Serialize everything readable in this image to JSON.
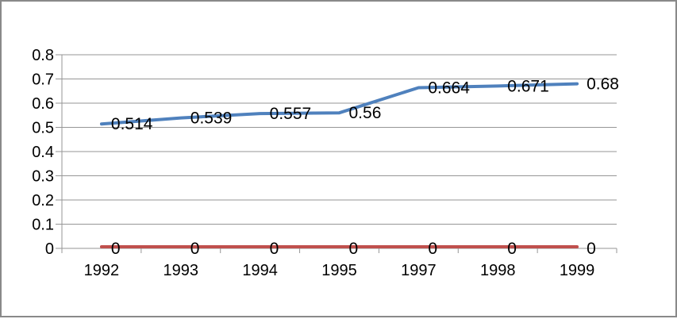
{
  "chart": {
    "background_color": "#ffffff",
    "frame_border_color": "#898989",
    "gridline_color": "#969696",
    "axis_color": "#969696",
    "text_color": "#000000"
  },
  "chart_data": {
    "type": "line",
    "title": "",
    "xlabel": "",
    "ylabel": "",
    "categories": [
      "1992",
      "1993",
      "1994",
      "1995",
      "1997",
      "1998",
      "1999"
    ],
    "series": [
      {
        "name": "series-1",
        "color": "#4F81BD",
        "values": [
          0.514,
          0.539,
          0.557,
          0.56,
          0.664,
          0.671,
          0.68
        ],
        "labels": [
          "0.514",
          "0.539",
          "0.557",
          "0.56",
          "0.664",
          "0.671",
          "0.68"
        ]
      },
      {
        "name": "series-2",
        "color": "#C0504D",
        "values": [
          0,
          0,
          0,
          0,
          0,
          0,
          0
        ],
        "labels": [
          "0",
          "0",
          "0",
          "0",
          "0",
          "0",
          "0"
        ]
      }
    ],
    "y_ticks": [
      0.8,
      0.7,
      0.6,
      0.5,
      0.4,
      0.3,
      0.2,
      0.1,
      0
    ],
    "y_tick_labels": [
      "0.8",
      "0.7",
      "0.6",
      "0.5",
      "0.4",
      "0.3",
      "0.2",
      "0.1",
      "0"
    ],
    "ylim": [
      0,
      0.8
    ],
    "grid": true,
    "legend": "none",
    "data_label_position": "right"
  }
}
